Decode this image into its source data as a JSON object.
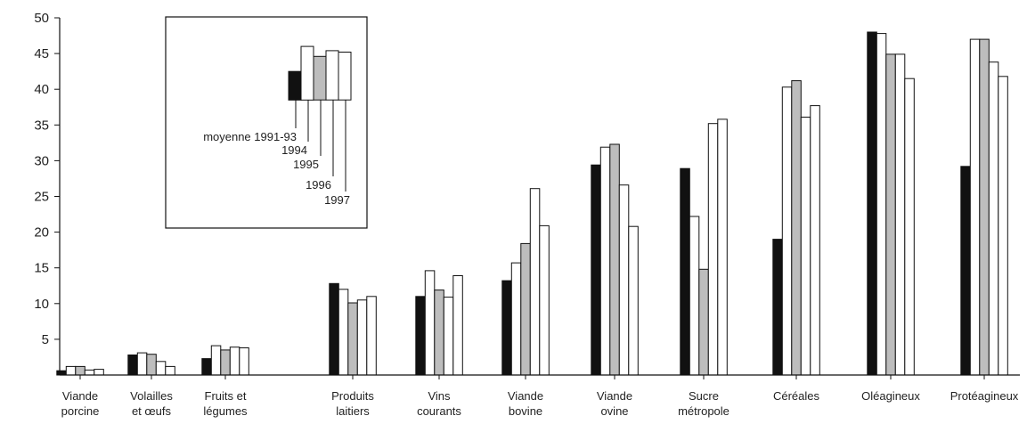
{
  "chart_data": {
    "type": "bar",
    "title": "",
    "xlabel": "",
    "ylabel": "",
    "ylim": [
      0,
      50
    ],
    "yticks": [
      5,
      10,
      15,
      20,
      25,
      30,
      35,
      40,
      45,
      50
    ],
    "grid": false,
    "legend_position": "top-left inset",
    "categories": [
      [
        "Viande",
        "porcine"
      ],
      [
        "Volailles",
        "et œufs"
      ],
      [
        "Fruits et",
        "légumes"
      ],
      [
        "Produits",
        "laitiers"
      ],
      [
        "Vins",
        "courants"
      ],
      [
        "Viande",
        "bovine"
      ],
      [
        "Viande",
        "ovine"
      ],
      [
        "Sucre",
        "métropole"
      ],
      [
        "Céréales"
      ],
      [
        "Oléagineux"
      ],
      [
        "Protéagineux"
      ]
    ],
    "series": [
      {
        "name": "moyenne 1991-93",
        "fill": "#111111",
        "values": [
          0.6,
          2.8,
          2.3,
          12.8,
          11.0,
          13.2,
          29.4,
          28.9,
          19.0,
          48.0,
          29.2
        ]
      },
      {
        "name": "1994",
        "fill": "#ffffff",
        "values": [
          1.2,
          3.1,
          4.1,
          12.0,
          14.6,
          15.7,
          31.9,
          22.2,
          40.3,
          47.8,
          47.0
        ]
      },
      {
        "name": "1995",
        "fill": "#bdbdbd",
        "values": [
          1.2,
          2.9,
          3.5,
          10.1,
          11.9,
          18.4,
          32.3,
          14.8,
          41.2,
          44.9,
          47.0
        ]
      },
      {
        "name": "1996",
        "fill": "#ffffff",
        "values": [
          0.7,
          1.9,
          3.9,
          10.5,
          10.9,
          26.1,
          26.6,
          35.2,
          36.1,
          44.9,
          43.8
        ]
      },
      {
        "name": "1997",
        "fill": "#ffffff",
        "values": [
          0.8,
          1.2,
          3.8,
          11.0,
          13.9,
          20.9,
          20.8,
          35.8,
          37.7,
          41.5,
          41.8
        ]
      }
    ]
  }
}
